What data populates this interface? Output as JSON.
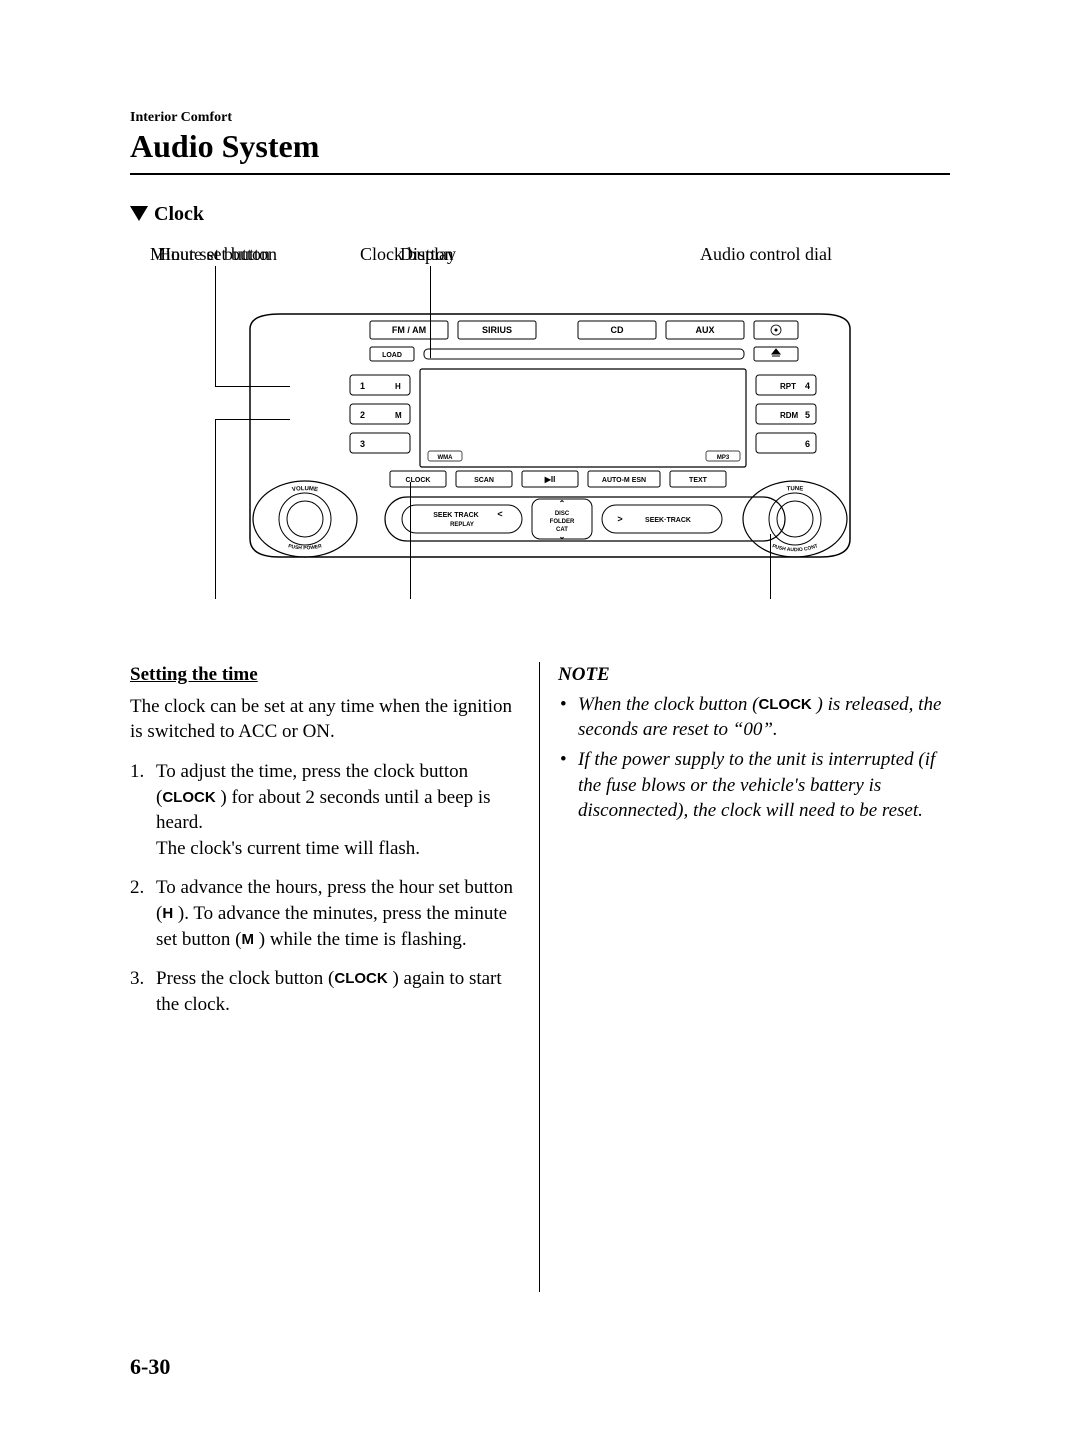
{
  "header": {
    "breadcrumb": "Interior Comfort",
    "title": "Audio System"
  },
  "section": {
    "heading": "Clock"
  },
  "diagram": {
    "callouts": {
      "hour_set": "Hour set button",
      "display": "Display",
      "minute_set": "Minute set button",
      "clock_button": "Clock button",
      "audio_dial": "Audio control dial"
    },
    "radio": {
      "top_row": [
        "FM / AM",
        "SIRIUS",
        "CD",
        "AUX"
      ],
      "load": "LOAD",
      "eject_icon": "eject",
      "disc_icon": "disc",
      "left_num_buttons": [
        {
          "num": "1",
          "sub": "H"
        },
        {
          "num": "2",
          "sub": "M"
        },
        {
          "num": "3",
          "sub": ""
        }
      ],
      "right_num_buttons": [
        {
          "sub": "RPT",
          "num": "4"
        },
        {
          "sub": "RDM",
          "num": "5"
        },
        {
          "sub": "",
          "num": "6"
        }
      ],
      "mid_row": [
        "CLOCK",
        "SCAN",
        "▶II",
        "AUTO-M ESN",
        "TEXT"
      ],
      "mid_badges": [
        "WMA",
        "MP3"
      ],
      "seek_left": "SEEK  TRACK",
      "seek_left_sub": "REPLAY",
      "seek_right": "SEEK·TRACK",
      "center_stack": [
        "DISC",
        "FOLDER",
        "CAT"
      ],
      "left_knob_top": "VOLUME",
      "left_knob_bottom": "PUSH POWER",
      "right_knob_top": "TUNE",
      "right_knob_bottom": "PUSH AUDIO CONT"
    },
    "colors": {
      "line": "#000000",
      "bg": "#ffffff"
    },
    "font_family": "Arial"
  },
  "body": {
    "left": {
      "heading": "Setting the time",
      "intro": "The clock can be set at any time when the ignition is switched to ACC or ON.",
      "steps": [
        {
          "pre": "To adjust the time, press the clock button (",
          "btn": "CLOCK",
          "post": " ) for about 2 seconds until a beep is heard.\nThe clock's current time will flash."
        },
        {
          "pre": "To advance the hours, press the hour set button (",
          "btn": "H",
          "mid": " ). To advance the minutes, press the minute set button (",
          "btn2": "M",
          "post": " ) while the time is flashing."
        },
        {
          "pre": "Press the clock button (",
          "btn": "CLOCK",
          "post": " ) again to start the clock."
        }
      ]
    },
    "right": {
      "heading": "NOTE",
      "items": [
        {
          "pre": "When the clock button (",
          "btn": "CLOCK",
          "post": " ) is released, the seconds are reset to “00”."
        },
        {
          "text": "If the power supply to the unit is interrupted (if the fuse blows or the vehicle's battery is disconnected), the clock will need to be reset."
        }
      ]
    }
  },
  "page_number": "6-30"
}
